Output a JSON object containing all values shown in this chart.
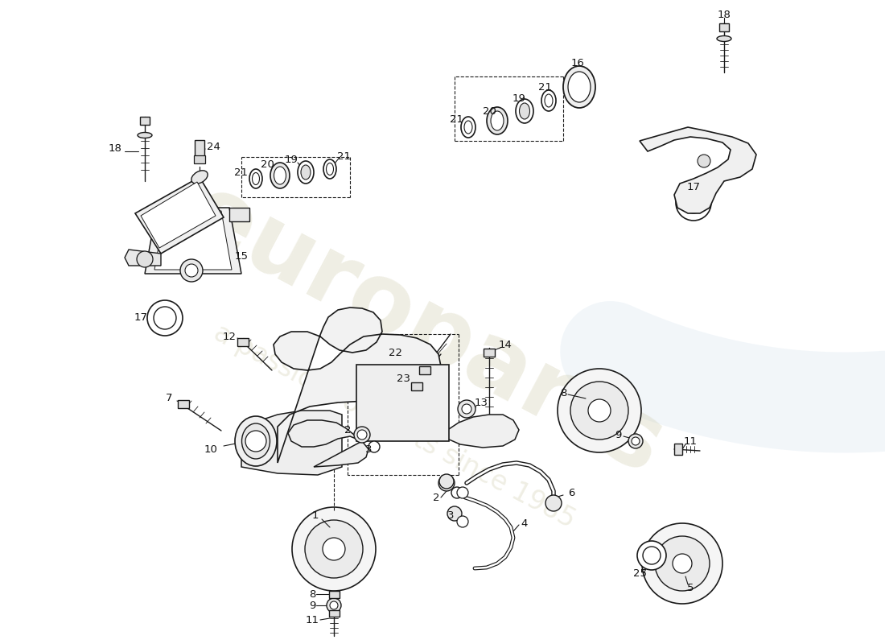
{
  "bg": "#ffffff",
  "lc": "#1a1a1a",
  "wm1": "europarts",
  "wm2": "a passion for parts since 1985",
  "fs": 9.5,
  "iw": 1100,
  "ih": 800
}
